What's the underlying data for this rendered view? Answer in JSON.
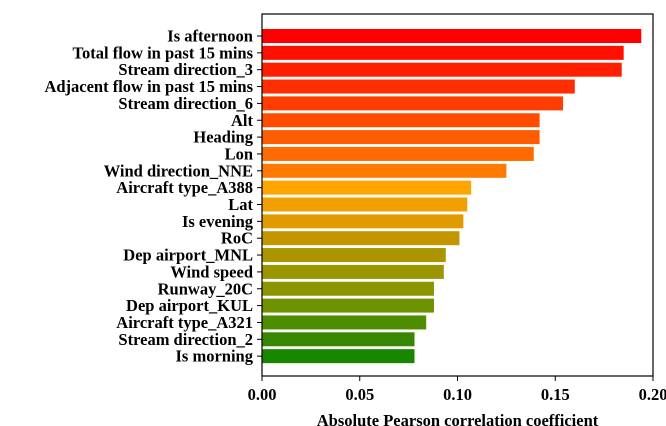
{
  "chart_data": {
    "type": "bar",
    "orientation": "horizontal",
    "categories": [
      "Is afternoon",
      "Total flow in past 15 mins",
      "Stream direction_3",
      "Adjacent flow in past 15 mins",
      "Stream direction_6",
      "Alt",
      "Heading",
      "Lon",
      "Wind direction_NNE",
      "Aircraft type_A388",
      "Lat",
      "Is evening",
      "RoC",
      "Dep airport_MNL",
      "Wind speed",
      "Runway_20C",
      "Dep airport_KUL",
      "Aircraft type_A321",
      "Stream direction_2",
      "Is morning"
    ],
    "values": [
      0.194,
      0.185,
      0.184,
      0.16,
      0.154,
      0.142,
      0.142,
      0.139,
      0.125,
      0.107,
      0.105,
      0.103,
      0.101,
      0.094,
      0.093,
      0.088,
      0.088,
      0.084,
      0.078,
      0.078
    ],
    "colors": [
      "#ff0000",
      "#ff0f00",
      "#ff1f00",
      "#ff2e00",
      "#ff3d00",
      "#ff4c00",
      "#ff5c00",
      "#ff6b00",
      "#ff7a00",
      "#ffa500",
      "#f0a000",
      "#e09b00",
      "#c39600",
      "#aa9400",
      "#999600",
      "#8a9500",
      "#6e9300",
      "#4e8c00",
      "#378800",
      "#198600"
    ],
    "xlabel": "Absolute Pearson correlation coefficient",
    "ylabel": "",
    "title": "",
    "xlim": [
      0.0,
      0.2
    ],
    "xticks": [
      "0.00",
      "0.05",
      "0.10",
      "0.15",
      "0.20"
    ],
    "grid": false,
    "legend": "none"
  }
}
